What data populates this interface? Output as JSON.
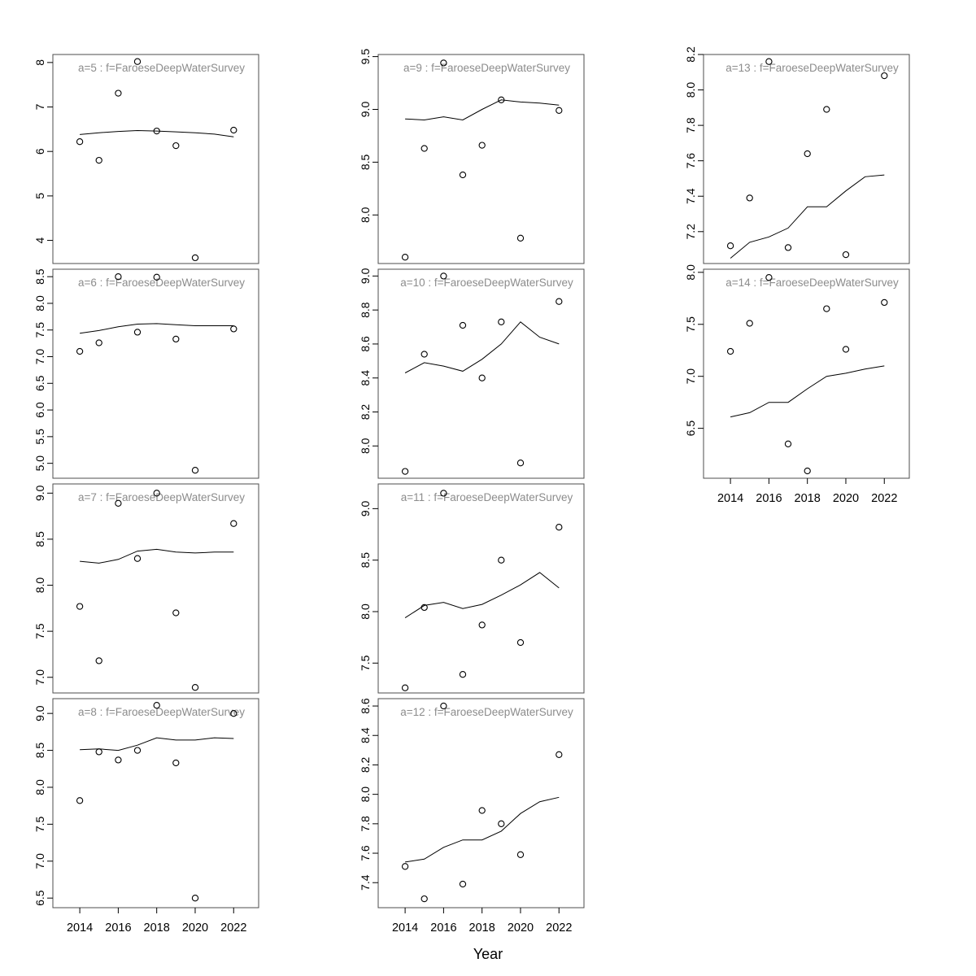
{
  "chart_data": {
    "type": "scatter",
    "figure_kind": "trellis-multipanel-scatter-with-fitted-line",
    "xlabel": "Year",
    "xlim": [
      2012.6,
      2023.3
    ],
    "x_tick_values": [
      2014,
      2016,
      2018,
      2020,
      2022
    ],
    "x_tick_labels": [
      "2014",
      "2016",
      "2018",
      "2020",
      "2022"
    ],
    "point_years": [
      2014,
      2015,
      2016,
      2017,
      2018,
      2019,
      2020,
      2022
    ],
    "line_years": [
      2014,
      2015,
      2016,
      2017,
      2018,
      2019,
      2020,
      2021,
      2022
    ],
    "marker": "open-circle",
    "line_style": "solid",
    "grid": false,
    "legend_position": "none",
    "colors": {
      "data": "#000000",
      "panel_border": "#4d4d4d",
      "title": "#8c8c8c",
      "background": "#ffffff"
    },
    "panels": [
      {
        "id": "a5",
        "title": "a=5 : f=FaroeseDeepWaterSurvey",
        "row": 0,
        "col": 0,
        "x_axis": false,
        "ylim": [
          3.48,
          8.18
        ],
        "yticks": [
          4,
          5,
          6,
          7,
          8
        ],
        "ytick_labels": [
          "4",
          "5",
          "6",
          "7",
          "8"
        ],
        "points": [
          6.22,
          5.8,
          7.31,
          8.02,
          6.46,
          6.13,
          3.61,
          6.48
        ],
        "line": [
          6.38,
          6.42,
          6.45,
          6.47,
          6.46,
          6.44,
          6.42,
          6.39,
          6.33
        ]
      },
      {
        "id": "a6",
        "title": "a=6 : f=FaroeseDeepWaterSurvey",
        "row": 1,
        "col": 0,
        "x_axis": false,
        "ylim": [
          4.72,
          8.64
        ],
        "yticks": [
          5.0,
          5.5,
          6.0,
          6.5,
          7.0,
          7.5,
          8.0,
          8.5
        ],
        "ytick_labels": [
          "5.0",
          "5.5",
          "6.0",
          "6.5",
          "7.0",
          "7.5",
          "8.0",
          "8.5"
        ],
        "points": [
          7.1,
          7.26,
          8.5,
          7.46,
          8.49,
          7.33,
          4.87,
          7.52
        ],
        "line": [
          7.44,
          7.49,
          7.56,
          7.61,
          7.62,
          7.6,
          7.58,
          7.58,
          7.58
        ]
      },
      {
        "id": "a7",
        "title": "a=7 : f=FaroeseDeepWaterSurvey",
        "row": 2,
        "col": 0,
        "x_axis": false,
        "ylim": [
          6.83,
          9.1
        ],
        "yticks": [
          7.0,
          7.5,
          8.0,
          8.5,
          9.0
        ],
        "ytick_labels": [
          "7.0",
          "7.5",
          "8.0",
          "8.5",
          "9.0"
        ],
        "points": [
          7.77,
          7.18,
          8.89,
          8.29,
          9.0,
          7.7,
          6.89,
          8.67
        ],
        "line": [
          8.26,
          8.24,
          8.28,
          8.37,
          8.39,
          8.36,
          8.35,
          8.36,
          8.36
        ]
      },
      {
        "id": "a8",
        "title": "a=8 : f=FaroeseDeepWaterSurvey",
        "row": 3,
        "col": 0,
        "x_axis": true,
        "ylim": [
          6.37,
          9.2
        ],
        "yticks": [
          6.5,
          7.0,
          7.5,
          8.0,
          8.5,
          9.0
        ],
        "ytick_labels": [
          "6.5",
          "7.0",
          "7.5",
          "8.0",
          "8.5",
          "9.0"
        ],
        "points": [
          7.82,
          8.48,
          8.37,
          8.5,
          9.11,
          8.33,
          6.5,
          9.0
        ],
        "line": [
          8.51,
          8.52,
          8.5,
          8.57,
          8.67,
          8.64,
          8.64,
          8.67,
          8.66
        ]
      },
      {
        "id": "a9",
        "title": "a=9 : f=FaroeseDeepWaterSurvey",
        "row": 0,
        "col": 1,
        "x_axis": false,
        "ylim": [
          7.54,
          9.52
        ],
        "yticks": [
          8.0,
          8.5,
          9.0,
          9.5
        ],
        "ytick_labels": [
          "8.0",
          "8.5",
          "9.0",
          "9.5"
        ],
        "points": [
          7.6,
          8.63,
          9.44,
          8.38,
          8.66,
          9.09,
          7.78,
          8.99
        ],
        "line": [
          8.91,
          8.9,
          8.93,
          8.9,
          9.0,
          9.09,
          9.07,
          9.06,
          9.04
        ]
      },
      {
        "id": "a10",
        "title": "a=10 : f=FaroeseDeepWaterSurvey",
        "row": 1,
        "col": 1,
        "x_axis": false,
        "ylim": [
          7.81,
          9.04
        ],
        "yticks": [
          8.0,
          8.2,
          8.4,
          8.6,
          8.8,
          9.0
        ],
        "ytick_labels": [
          "8.0",
          "8.2",
          "8.4",
          "8.6",
          "8.8",
          "9.0"
        ],
        "points": [
          7.85,
          8.54,
          9.0,
          8.71,
          8.4,
          8.73,
          7.9,
          8.85
        ],
        "line": [
          8.43,
          8.49,
          8.47,
          8.44,
          8.51,
          8.6,
          8.73,
          8.64,
          8.6
        ]
      },
      {
        "id": "a11",
        "title": "a=11 : f=FaroeseDeepWaterSurvey",
        "row": 2,
        "col": 1,
        "x_axis": false,
        "ylim": [
          7.21,
          9.24
        ],
        "yticks": [
          7.5,
          8.0,
          8.5,
          9.0
        ],
        "ytick_labels": [
          "7.5",
          "8.0",
          "8.5",
          "9.0"
        ],
        "points": [
          7.26,
          8.04,
          9.15,
          7.39,
          7.87,
          8.5,
          7.7,
          8.82
        ],
        "line": [
          7.94,
          8.06,
          8.09,
          8.03,
          8.07,
          8.16,
          8.26,
          8.38,
          8.23
        ]
      },
      {
        "id": "a12",
        "title": "a=12 : f=FaroeseDeepWaterSurvey",
        "row": 3,
        "col": 1,
        "x_axis": true,
        "ylim": [
          7.23,
          8.65
        ],
        "yticks": [
          7.4,
          7.6,
          7.8,
          8.0,
          8.2,
          8.4,
          8.6
        ],
        "ytick_labels": [
          "7.4",
          "7.6",
          "7.8",
          "8.0",
          "8.2",
          "8.4",
          "8.6"
        ],
        "points": [
          7.51,
          7.29,
          8.6,
          7.39,
          7.89,
          7.8,
          7.59,
          8.27
        ],
        "line": [
          7.54,
          7.56,
          7.64,
          7.69,
          7.69,
          7.75,
          7.87,
          7.95,
          7.98
        ]
      },
      {
        "id": "a13",
        "title": "a=13 : f=FaroeseDeepWaterSurvey",
        "row": 0,
        "col": 2,
        "x_axis": false,
        "ylim": [
          7.02,
          8.2
        ],
        "yticks": [
          7.2,
          7.4,
          7.6,
          7.8,
          8.0,
          8.2
        ],
        "ytick_labels": [
          "7.2",
          "7.4",
          "7.6",
          "7.8",
          "8.0",
          "8.2"
        ],
        "points": [
          7.12,
          7.39,
          8.16,
          7.11,
          7.64,
          7.89,
          7.07,
          8.08
        ],
        "line": [
          7.05,
          7.14,
          7.17,
          7.22,
          7.34,
          7.34,
          7.43,
          7.51,
          7.52
        ]
      },
      {
        "id": "a14",
        "title": "a=14 : f=FaroeseDeepWaterSurvey",
        "row": 1,
        "col": 2,
        "x_axis": true,
        "ylim": [
          6.02,
          8.03
        ],
        "yticks": [
          6.5,
          7.0,
          7.5,
          8.0
        ],
        "ytick_labels": [
          "6.5",
          "7.0",
          "7.5",
          "8.0"
        ],
        "points": [
          7.24,
          7.51,
          7.95,
          6.35,
          6.09,
          7.65,
          7.26,
          7.71
        ],
        "line": [
          6.61,
          6.65,
          6.75,
          6.75,
          6.88,
          7.0,
          7.03,
          7.07,
          7.1
        ]
      }
    ]
  }
}
